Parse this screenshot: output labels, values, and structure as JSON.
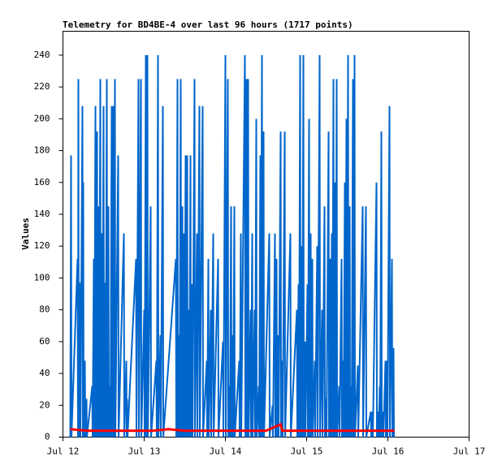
{
  "chart_data": {
    "type": "line",
    "title": "Telemetry for BD4BE-4 over last 96 hours (1717 points)",
    "y_label": "Values",
    "xlim": [
      12,
      17
    ],
    "xticks": [
      {
        "value": 12,
        "label": "Jul 12"
      },
      {
        "value": 13,
        "label": "Jul 13"
      },
      {
        "value": 14,
        "label": "Jul 14"
      },
      {
        "value": 15,
        "label": "Jul 15"
      },
      {
        "value": 16,
        "label": "Jul 16"
      },
      {
        "value": 17,
        "label": "Jul 17"
      }
    ],
    "ylim": [
      0,
      255
    ],
    "yticks": [
      0,
      20,
      40,
      60,
      80,
      100,
      120,
      140,
      160,
      180,
      200,
      220,
      240
    ],
    "grid": false,
    "series": [
      {
        "color": "#0066cc",
        "width": 2,
        "x": [
          12.09,
          12.1,
          12.105,
          12.18,
          12.185,
          12.19,
          12.195,
          12.21,
          12.215,
          12.24,
          12.245,
          12.25,
          12.255,
          12.27,
          12.275,
          12.29,
          12.295,
          12.36,
          12.365,
          12.38,
          12.385,
          12.4,
          12.405,
          12.42,
          12.425,
          12.44,
          12.445,
          12.46,
          12.465,
          12.48,
          12.485,
          12.5,
          12.505,
          12.52,
          12.525,
          12.54,
          12.545,
          12.56,
          12.565,
          12.58,
          12.585,
          12.6,
          12.605,
          12.62,
          12.625,
          12.64,
          12.645,
          12.68,
          12.685,
          12.75,
          12.755,
          12.78,
          12.785,
          12.79,
          12.795,
          12.9,
          12.905,
          12.93,
          12.935,
          12.96,
          12.965,
          13,
          13.005,
          13.02,
          13.025,
          13.04,
          13.045,
          13.08,
          13.085,
          13.15,
          13.155,
          13.17,
          13.175,
          13.2,
          13.205,
          13.23,
          13.235,
          13.39,
          13.395,
          13.41,
          13.415,
          13.43,
          13.435,
          13.45,
          13.455,
          13.47,
          13.475,
          13.49,
          13.495,
          13.51,
          13.515,
          13.53,
          13.535,
          13.55,
          13.555,
          13.57,
          13.575,
          13.59,
          13.595,
          13.62,
          13.625,
          13.65,
          13.655,
          13.68,
          13.685,
          13.72,
          13.725,
          13.77,
          13.775,
          13.79,
          13.795,
          13.82,
          13.825,
          13.85,
          13.855,
          13.91,
          13.915,
          13.97,
          13.975,
          14,
          14.005,
          14.03,
          14.035,
          14.05,
          14.055,
          14.07,
          14.075,
          14.09,
          14.095,
          14.11,
          14.115,
          14.17,
          14.175,
          14.19,
          14.195,
          14.24,
          14.245,
          14.26,
          14.265,
          14.28,
          14.285,
          14.31,
          14.315,
          14.33,
          14.335,
          14.36,
          14.365,
          14.38,
          14.385,
          14.41,
          14.415,
          14.43,
          14.435,
          14.45,
          14.455,
          14.47,
          14.475,
          14.54,
          14.545,
          14.58,
          14.585,
          14.61,
          14.615,
          14.63,
          14.635,
          14.65,
          14.655,
          14.68,
          14.685,
          14.7,
          14.705,
          14.73,
          14.735,
          14.8,
          14.805,
          14.88,
          14.885,
          14.9,
          14.905,
          14.92,
          14.925,
          14.94,
          14.945,
          14.96,
          14.965,
          14.98,
          14.985,
          15.01,
          15.015,
          15.03,
          15.035,
          15.05,
          15.055,
          15.07,
          15.075,
          15.1,
          15.105,
          15.13,
          15.135,
          15.16,
          15.165,
          15.19,
          15.195,
          15.22,
          15.225,
          15.24,
          15.245,
          15.27,
          15.275,
          15.29,
          15.295,
          15.31,
          15.315,
          15.33,
          15.335,
          15.35,
          15.355,
          15.37,
          15.375,
          15.4,
          15.405,
          15.43,
          15.435,
          15.45,
          15.455,
          15.47,
          15.475,
          15.49,
          15.495,
          15.51,
          15.515,
          15.53,
          15.535,
          15.55,
          15.555,
          15.57,
          15.575,
          15.59,
          15.595,
          15.63,
          15.635,
          15.69,
          15.695,
          15.73,
          15.735,
          15.79,
          15.795,
          15.81,
          15.815,
          15.86,
          15.865,
          15.88,
          15.885,
          15.9,
          15.905,
          15.92,
          15.925,
          15.94,
          15.945,
          15.97,
          15.975,
          15.99,
          15.995,
          16.02,
          16.025,
          16.05,
          16.055,
          16.07,
          16.075
        ],
        "values": [
          0,
          177,
          0,
          112,
          0,
          225,
          0,
          97,
          0,
          208,
          0,
          160,
          0,
          48,
          0,
          24,
          0,
          32,
          0,
          112,
          0,
          208,
          0,
          192,
          0,
          145,
          0,
          225,
          0,
          128,
          0,
          208,
          0,
          97,
          0,
          225,
          0,
          145,
          0,
          32,
          0,
          208,
          0,
          208,
          0,
          225,
          0,
          177,
          0,
          128,
          0,
          48,
          0,
          24,
          0,
          112,
          0,
          225,
          0,
          225,
          0,
          80,
          0,
          240,
          0,
          240,
          0,
          145,
          0,
          48,
          0,
          240,
          0,
          64,
          0,
          208,
          0,
          112,
          0,
          225,
          0,
          64,
          0,
          225,
          0,
          145,
          0,
          128,
          0,
          177,
          0,
          177,
          0,
          80,
          0,
          177,
          0,
          96,
          0,
          225,
          0,
          128,
          0,
          208,
          0,
          208,
          0,
          48,
          0,
          112,
          0,
          80,
          0,
          128,
          0,
          112,
          0,
          60,
          0,
          240,
          0,
          225,
          0,
          32,
          0,
          145,
          0,
          64,
          0,
          145,
          0,
          48,
          0,
          128,
          0,
          240,
          0,
          225,
          0,
          225,
          0,
          80,
          0,
          128,
          0,
          80,
          0,
          200,
          0,
          32,
          0,
          177,
          0,
          240,
          0,
          192,
          0,
          128,
          0,
          20,
          0,
          128,
          0,
          112,
          0,
          64,
          0,
          192,
          0,
          48,
          0,
          192,
          0,
          128,
          0,
          80,
          0,
          96,
          0,
          240,
          0,
          120,
          0,
          240,
          0,
          60,
          0,
          96,
          0,
          200,
          0,
          128,
          0,
          112,
          0,
          48,
          0,
          120,
          0,
          240,
          0,
          80,
          0,
          145,
          0,
          24,
          0,
          192,
          0,
          112,
          0,
          128,
          0,
          225,
          0,
          160,
          0,
          225,
          0,
          32,
          0,
          112,
          0,
          48,
          0,
          160,
          0,
          200,
          0,
          240,
          0,
          145,
          0,
          32,
          0,
          225,
          0,
          240,
          0,
          45,
          0,
          145,
          0,
          145,
          0,
          16,
          0,
          16,
          0,
          160,
          0,
          16,
          0,
          32,
          0,
          192,
          0,
          16,
          0,
          48,
          0,
          48,
          0,
          208,
          0,
          112,
          0,
          56,
          0
        ]
      },
      {
        "color": "#ff0000",
        "width": 3,
        "x": [
          12.09,
          12.3,
          12.5,
          12.7,
          12.9,
          13.1,
          13.3,
          13.5,
          13.7,
          13.9,
          14.1,
          14.3,
          14.5,
          14.68,
          14.7,
          14.9,
          15.1,
          15.3,
          15.5,
          15.7,
          15.9,
          16.08
        ],
        "values": [
          5,
          4,
          4,
          4,
          4,
          4,
          5,
          4,
          4,
          4,
          4,
          4,
          4,
          8,
          4,
          4,
          4,
          4,
          4,
          4,
          4,
          4
        ]
      }
    ]
  }
}
